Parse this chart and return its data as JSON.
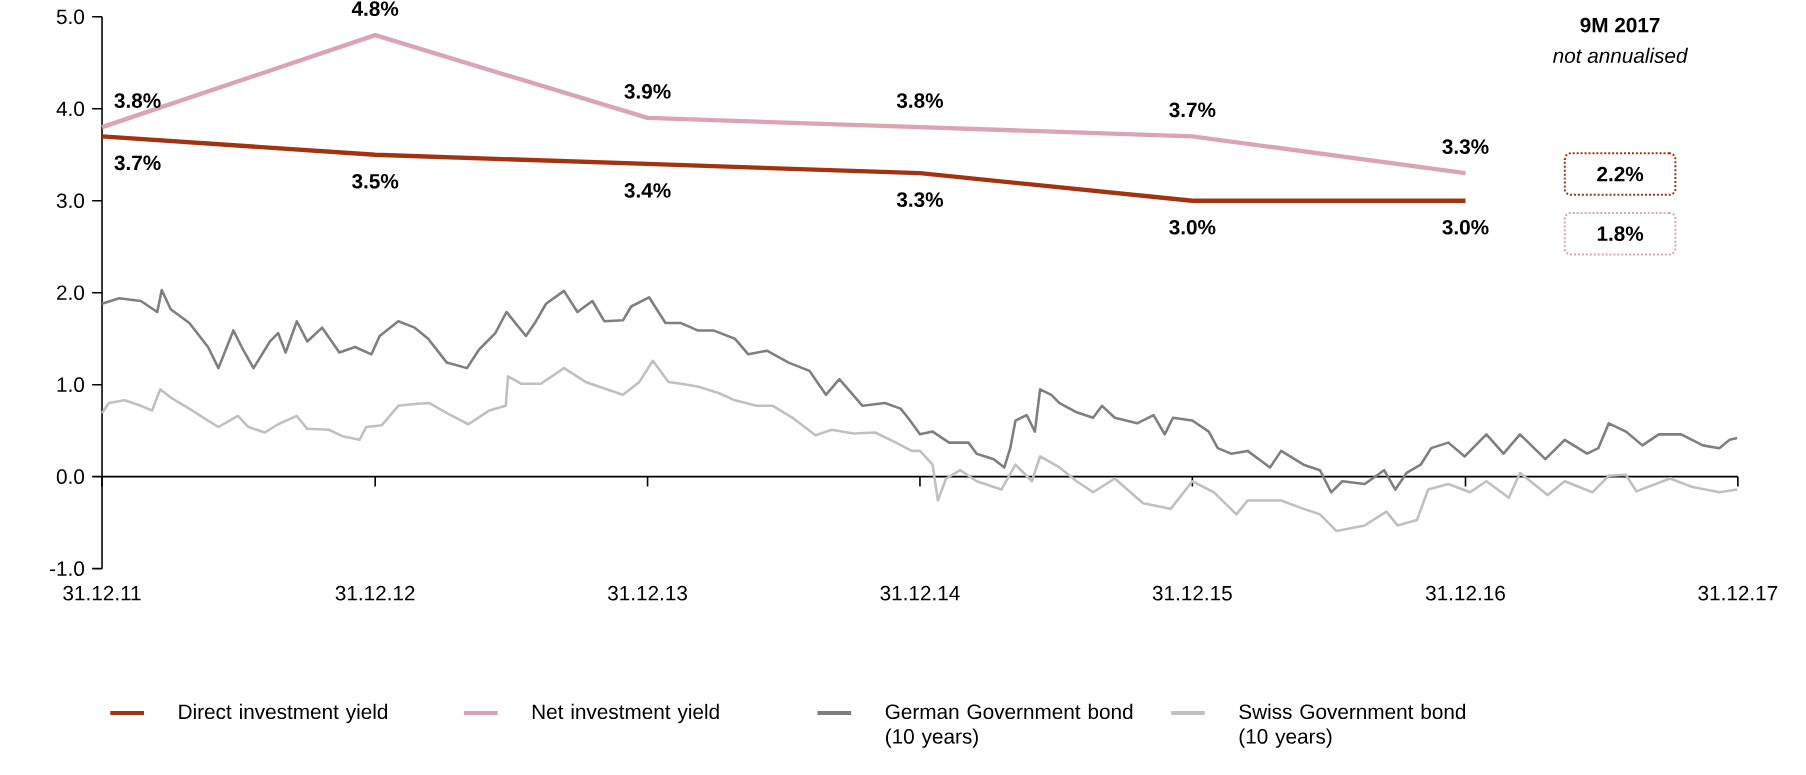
{
  "chart_data": {
    "type": "line",
    "xlim": [
      "2011-12-31",
      "2017-12-31"
    ],
    "xticks": [
      {
        "value": "2011-12-31",
        "label": "31.12.11"
      },
      {
        "value": "2012-12-31",
        "label": "31.12.12"
      },
      {
        "value": "2013-12-31",
        "label": "31.12.13"
      },
      {
        "value": "2014-12-31",
        "label": "31.12.14"
      },
      {
        "value": "2015-12-31",
        "label": "31.12.15"
      },
      {
        "value": "2016-12-31",
        "label": "31.12.16"
      },
      {
        "value": "2017-12-31",
        "label": "31.12.17"
      }
    ],
    "ylim": [
      -1,
      5
    ],
    "yticks": [
      {
        "value": -1,
        "label": "-1.0"
      },
      {
        "value": 0,
        "label": "0.0"
      },
      {
        "value": 1,
        "label": "1.0"
      },
      {
        "value": 2,
        "label": "2.0"
      },
      {
        "value": 3,
        "label": "3.0"
      },
      {
        "value": 4,
        "label": "4.0"
      },
      {
        "value": 5,
        "label": "5.0"
      }
    ],
    "legend": "bottom",
    "annotations": [
      "9M 2017",
      "not annualised",
      "2.2%",
      "1.8%"
    ],
    "series": [
      {
        "name": "Direct investment yield",
        "color": "#a33210",
        "x": [
          "2011-12-31",
          "2012-12-31",
          "2013-12-31",
          "2014-12-31",
          "2015-12-31",
          "2016-12-31"
        ],
        "values": [
          3.7,
          3.5,
          3.4,
          3.3,
          3.0,
          3.0
        ],
        "value_labels": [
          "3.7%",
          "3.5%",
          "3.4%",
          "3.3%",
          "3.0%",
          "3.0%"
        ]
      },
      {
        "name": "Net investment yield",
        "color": "#dba4b1",
        "x": [
          "2011-12-31",
          "2012-12-31",
          "2013-12-31",
          "2014-12-31",
          "2015-12-31",
          "2016-12-31"
        ],
        "values": [
          3.8,
          4.8,
          3.9,
          3.8,
          3.7,
          3.3
        ],
        "value_labels": [
          "3.8%",
          "4.8%",
          "3.9%",
          "3.8%",
          "3.7%",
          "3.3%"
        ]
      },
      {
        "name": "German Government bond (10 years)",
        "color": "#7f7f7f",
        "x": [
          "2011-12-31",
          "2012-01-23",
          "2012-02-21",
          "2012-03-14",
          "2012-03-20",
          "2012-04-01",
          "2012-04-26",
          "2012-05-21",
          "2012-06-04",
          "2012-06-24",
          "2012-07-07",
          "2012-07-21",
          "2012-08-12",
          "2012-08-23",
          "2012-09-02",
          "2012-09-17",
          "2012-10-01",
          "2012-10-21",
          "2012-11-13",
          "2012-12-04",
          "2012-12-26",
          "2013-01-06",
          "2013-01-31",
          "2013-02-22",
          "2013-03-12",
          "2013-04-06",
          "2013-05-03",
          "2013-05-19",
          "2013-06-10",
          "2013-06-25",
          "2013-07-21",
          "2013-08-02",
          "2013-08-17",
          "2013-09-10",
          "2013-09-28",
          "2013-10-18",
          "2013-11-03",
          "2013-11-28",
          "2013-12-09",
          "2014-01-02",
          "2014-01-24",
          "2014-02-14",
          "2014-03-08",
          "2014-03-29",
          "2014-04-27",
          "2014-05-15",
          "2014-06-09",
          "2014-07-08",
          "2014-08-05",
          "2014-08-27",
          "2014-09-14",
          "2014-10-15",
          "2014-11-14",
          "2014-12-05",
          "2014-12-16",
          "2014-12-31",
          "2015-01-17",
          "2015-02-08",
          "2015-03-06",
          "2015-03-17",
          "2015-04-09",
          "2015-04-23",
          "2015-05-01",
          "2015-05-08",
          "2015-05-23",
          "2015-06-03",
          "2015-06-10",
          "2015-06-25",
          "2015-07-06",
          "2015-07-29",
          "2015-08-20",
          "2015-09-01",
          "2015-09-18",
          "2015-10-18",
          "2015-11-09",
          "2015-11-24",
          "2015-12-05",
          "2015-12-31",
          "2016-01-22",
          "2016-02-03",
          "2016-02-21",
          "2016-03-14",
          "2016-04-13",
          "2016-04-28",
          "2016-05-28",
          "2016-06-19",
          "2016-07-04",
          "2016-07-19",
          "2016-08-18",
          "2016-09-13",
          "2016-09-28",
          "2016-10-13",
          "2016-11-01",
          "2016-11-15",
          "2016-12-08",
          "2016-12-30",
          "2017-01-28",
          "2017-02-20",
          "2017-03-14",
          "2017-04-17",
          "2017-05-13",
          "2017-06-12",
          "2017-06-27",
          "2017-07-11",
          "2017-08-03",
          "2017-08-25",
          "2017-09-16",
          "2017-10-16",
          "2017-11-14",
          "2017-12-06",
          "2017-12-20",
          "2017-12-30"
        ],
        "values": [
          1.88,
          1.94,
          1.91,
          1.79,
          2.03,
          1.82,
          1.67,
          1.41,
          1.18,
          1.59,
          1.38,
          1.18,
          1.47,
          1.56,
          1.35,
          1.69,
          1.47,
          1.62,
          1.35,
          1.41,
          1.33,
          1.53,
          1.69,
          1.62,
          1.5,
          1.24,
          1.18,
          1.38,
          1.56,
          1.79,
          1.53,
          1.67,
          1.88,
          2.02,
          1.79,
          1.91,
          1.69,
          1.7,
          1.85,
          1.95,
          1.67,
          1.67,
          1.59,
          1.59,
          1.5,
          1.33,
          1.37,
          1.24,
          1.15,
          0.89,
          1.06,
          0.77,
          0.8,
          0.74,
          0.63,
          0.46,
          0.49,
          0.37,
          0.37,
          0.25,
          0.19,
          0.1,
          0.31,
          0.61,
          0.67,
          0.49,
          0.95,
          0.89,
          0.8,
          0.7,
          0.64,
          0.77,
          0.64,
          0.58,
          0.67,
          0.46,
          0.64,
          0.61,
          0.49,
          0.31,
          0.25,
          0.28,
          0.1,
          0.28,
          0.13,
          0.07,
          -0.17,
          -0.05,
          -0.08,
          0.07,
          -0.14,
          0.04,
          0.13,
          0.31,
          0.37,
          0.22,
          0.46,
          0.25,
          0.46,
          0.19,
          0.4,
          0.25,
          0.31,
          0.58,
          0.49,
          0.34,
          0.46,
          0.46,
          0.34,
          0.31,
          0.4,
          0.42
        ]
      },
      {
        "name": "Swiss Government bond (10 years)",
        "color": "#c0c0c0",
        "x": [
          "2011-12-31",
          "2012-01-09",
          "2012-01-30",
          "2012-02-21",
          "2012-03-07",
          "2012-03-18",
          "2012-04-01",
          "2012-04-26",
          "2012-05-17",
          "2012-06-04",
          "2012-06-30",
          "2012-07-14",
          "2012-08-05",
          "2012-08-23",
          "2012-09-17",
          "2012-10-01",
          "2012-10-30",
          "2012-11-17",
          "2012-12-10",
          "2012-12-19",
          "2013-01-09",
          "2013-01-31",
          "2013-02-22",
          "2013-03-14",
          "2013-04-06",
          "2013-05-05",
          "2013-06-02",
          "2013-06-24",
          "2013-06-27",
          "2013-07-15",
          "2013-08-10",
          "2013-09-10",
          "2013-10-09",
          "2013-11-06",
          "2013-11-28",
          "2013-12-20",
          "2014-01-07",
          "2014-01-28",
          "2014-02-14",
          "2014-03-08",
          "2014-04-05",
          "2014-04-27",
          "2014-05-26",
          "2014-06-17",
          "2014-07-15",
          "2014-08-13",
          "2014-09-04",
          "2014-10-03",
          "2014-11-01",
          "2014-11-29",
          "2014-12-20",
          "2014-12-31",
          "2015-01-17",
          "2015-01-24",
          "2015-02-04",
          "2015-02-23",
          "2015-03-17",
          "2015-04-19",
          "2015-05-08",
          "2015-05-30",
          "2015-06-10",
          "2015-07-06",
          "2015-07-29",
          "2015-08-20",
          "2015-09-18",
          "2015-10-26",
          "2015-12-02",
          "2015-12-31",
          "2016-01-29",
          "2016-02-28",
          "2016-03-14",
          "2016-04-28",
          "2016-05-28",
          "2016-06-19",
          "2016-07-11",
          "2016-08-18",
          "2016-09-16",
          "2016-10-01",
          "2016-10-27",
          "2016-11-11",
          "2016-12-08",
          "2017-01-06",
          "2017-01-28",
          "2017-02-27",
          "2017-03-14",
          "2017-04-20",
          "2017-05-13",
          "2017-06-19",
          "2017-07-11",
          "2017-08-03",
          "2017-08-17",
          "2017-10-01",
          "2017-10-30",
          "2017-12-06",
          "2017-12-30"
        ],
        "values": [
          0.69,
          0.8,
          0.83,
          0.77,
          0.72,
          0.95,
          0.86,
          0.74,
          0.63,
          0.54,
          0.66,
          0.54,
          0.48,
          0.57,
          0.66,
          0.52,
          0.51,
          0.44,
          0.4,
          0.54,
          0.56,
          0.77,
          0.79,
          0.8,
          0.69,
          0.57,
          0.72,
          0.77,
          1.09,
          1.01,
          1.01,
          1.18,
          1.03,
          0.95,
          0.89,
          1.03,
          1.26,
          1.03,
          1.01,
          0.98,
          0.91,
          0.83,
          0.77,
          0.77,
          0.63,
          0.45,
          0.51,
          0.47,
          0.48,
          0.37,
          0.28,
          0.28,
          0.13,
          -0.26,
          -0.02,
          0.07,
          -0.05,
          -0.14,
          0.13,
          -0.05,
          0.22,
          0.1,
          -0.05,
          -0.17,
          -0.02,
          -0.29,
          -0.35,
          -0.05,
          -0.17,
          -0.41,
          -0.26,
          -0.26,
          -0.35,
          -0.41,
          -0.59,
          -0.53,
          -0.38,
          -0.53,
          -0.47,
          -0.14,
          -0.08,
          -0.17,
          -0.05,
          -0.23,
          0.04,
          -0.2,
          -0.05,
          -0.17,
          0.01,
          0.02,
          -0.16,
          -0.02,
          -0.11,
          -0.17,
          -0.14
        ]
      }
    ]
  }
}
